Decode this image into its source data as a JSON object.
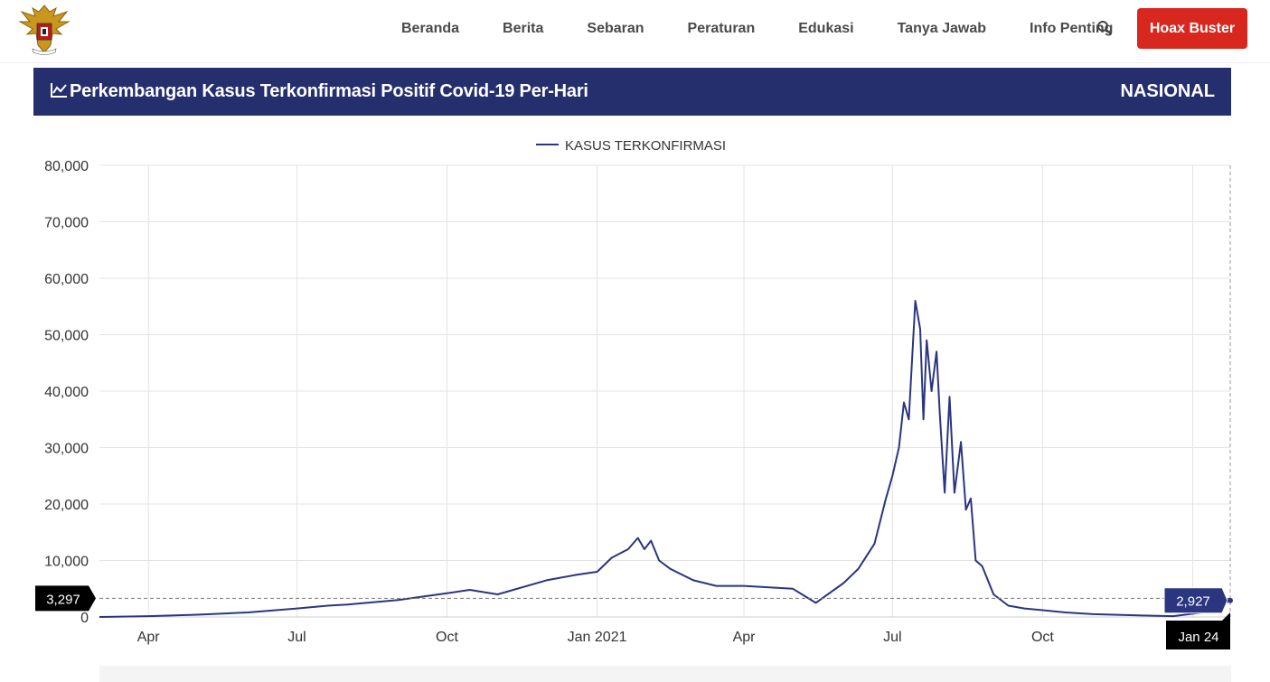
{
  "header": {
    "logo_icon": "garuda-emblem-icon",
    "nav": [
      "Beranda",
      "Berita",
      "Sebaran",
      "Peraturan",
      "Edukasi",
      "Tanya Jawab",
      "Info Penting"
    ],
    "search_icon": "search-icon",
    "hoax_button": "Hoax Buster",
    "hoax_color": "#d8271e"
  },
  "banner": {
    "title": "Perkembangan Kasus Terkonfirmasi Positif Covid-19 Per-Hari",
    "region": "NASIONAL",
    "icon": "line-chart-icon",
    "background": "#252f6e"
  },
  "chart_data": {
    "type": "line",
    "legend": "KASUS TERKONFIRMASI",
    "legend_position": "top-center",
    "line_color": "#2b3580",
    "grid": true,
    "ylim": [
      0,
      80000
    ],
    "y_ticks": [
      "80,000",
      "70,000",
      "60,000",
      "50,000",
      "40,000",
      "30,000",
      "20,000",
      "10,000",
      "0"
    ],
    "x_tick_labels": [
      "Apr",
      "Jul",
      "Oct",
      "Jan 2021",
      "Apr",
      "Jul",
      "Oct",
      "Jan"
    ],
    "x_tick_dates": [
      "2020-04-01",
      "2020-07-01",
      "2020-10-01",
      "2021-01-01",
      "2021-04-01",
      "2021-07-01",
      "2021-10-01",
      "2022-01-01"
    ],
    "x_range": [
      "2020-03-02",
      "2022-01-24"
    ],
    "crosshair": {
      "y_value": 3297,
      "y_label": "3,297",
      "x_label": "Jan 24",
      "point_value": 2927,
      "point_label": "2,927"
    },
    "series": [
      {
        "name": "KASUS TERKONFIRMASI",
        "x": [
          "2020-03-02",
          "2020-04-01",
          "2020-05-01",
          "2020-06-01",
          "2020-07-01",
          "2020-07-20",
          "2020-08-01",
          "2020-09-01",
          "2020-10-01",
          "2020-10-15",
          "2020-11-01",
          "2020-12-01",
          "2020-12-20",
          "2021-01-01",
          "2021-01-10",
          "2021-01-20",
          "2021-01-26",
          "2021-01-30",
          "2021-02-03",
          "2021-02-08",
          "2021-02-15",
          "2021-03-01",
          "2021-03-15",
          "2021-04-01",
          "2021-05-01",
          "2021-05-15",
          "2021-06-01",
          "2021-06-10",
          "2021-06-20",
          "2021-06-27",
          "2021-07-01",
          "2021-07-05",
          "2021-07-08",
          "2021-07-11",
          "2021-07-15",
          "2021-07-18",
          "2021-07-20",
          "2021-07-22",
          "2021-07-25",
          "2021-07-28",
          "2021-07-30",
          "2021-08-02",
          "2021-08-05",
          "2021-08-08",
          "2021-08-12",
          "2021-08-15",
          "2021-08-18",
          "2021-08-21",
          "2021-08-25",
          "2021-09-01",
          "2021-09-10",
          "2021-09-20",
          "2021-10-01",
          "2021-10-15",
          "2021-11-01",
          "2021-12-01",
          "2021-12-20",
          "2022-01-10",
          "2022-01-24"
        ],
        "values": [
          0,
          150,
          400,
          800,
          1500,
          2000,
          2200,
          3000,
          4200,
          4800,
          4000,
          6500,
          7500,
          8000,
          10500,
          12000,
          14000,
          12000,
          13500,
          10000,
          8500,
          6500,
          5500,
          5500,
          5000,
          2500,
          6000,
          8500,
          13000,
          21000,
          25000,
          30000,
          38000,
          35000,
          56000,
          51000,
          35000,
          49000,
          40000,
          47000,
          36000,
          22000,
          39000,
          22000,
          31000,
          19000,
          21000,
          10000,
          9000,
          4000,
          2000,
          1500,
          1200,
          800,
          500,
          250,
          150,
          900,
          2927
        ]
      }
    ]
  }
}
